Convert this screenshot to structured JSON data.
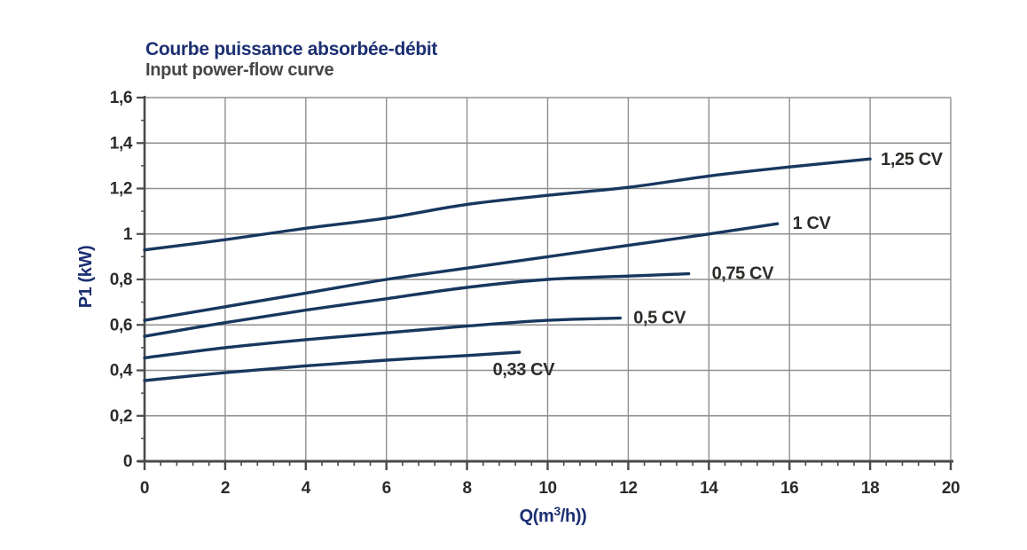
{
  "header": {
    "title": "Courbe puissance absorbée-débit",
    "subtitle": "Input power-flow curve"
  },
  "colors": {
    "background": "#ffffff",
    "title": "#1c2f72",
    "subtitle": "#474747",
    "curve": "#17375e",
    "grid": "#8f8f8f",
    "axis": "#4a4a4a",
    "tick_label": "#2b2b2b",
    "curve_label": "#2e2c29",
    "axis_title": "#1c2f72"
  },
  "chart_data": {
    "type": "line",
    "title": "Courbe puissance absorbée-débit",
    "subtitle": "Input power-flow curve",
    "xlabel": {
      "pre": "Q(m",
      "sup": "3",
      "post": "/h))"
    },
    "ylabel": "P1 (kW)",
    "xlim": [
      0,
      20
    ],
    "ylim": [
      0,
      1.6
    ],
    "grid": true,
    "x_tick_step": 2,
    "x_minor_step": 0.4,
    "y_tick_step": 0.2,
    "y_minor_step": 0.1,
    "x_tick_labels": [
      "0",
      "2",
      "4",
      "6",
      "8",
      "10",
      "12",
      "14",
      "16",
      "18",
      "20"
    ],
    "y_tick_labels": [
      "0",
      "0,2",
      "0,4",
      "0,6",
      "0,8",
      "1",
      "1,2",
      "1,4",
      "1,6"
    ],
    "legend_position": "labels at end of each curve",
    "series": [
      {
        "name": "1,25 CV",
        "x": [
          0,
          2,
          4,
          6,
          8,
          10,
          12,
          14,
          16,
          18
        ],
        "y": [
          0.93,
          0.975,
          1.025,
          1.07,
          1.13,
          1.17,
          1.205,
          1.255,
          1.295,
          1.33
        ],
        "label_dx": 12,
        "label_dy": 1
      },
      {
        "name": "1 CV",
        "x": [
          0,
          2,
          4,
          6,
          8,
          10,
          12,
          14,
          15.7
        ],
        "y": [
          0.62,
          0.68,
          0.74,
          0.8,
          0.85,
          0.9,
          0.95,
          1.0,
          1.045
        ],
        "label_dx": 17,
        "label_dy": 0
      },
      {
        "name": "0,75 CV",
        "x": [
          0,
          2,
          4,
          6,
          8,
          10,
          12,
          13.5
        ],
        "y": [
          0.55,
          0.61,
          0.665,
          0.715,
          0.765,
          0.8,
          0.815,
          0.825
        ],
        "label_dx": 26,
        "label_dy": 0
      },
      {
        "name": "0,5 CV",
        "x": [
          0,
          2,
          4,
          6,
          8,
          10,
          11.8
        ],
        "y": [
          0.455,
          0.5,
          0.535,
          0.565,
          0.595,
          0.62,
          0.63
        ],
        "label_dx": 15,
        "label_dy": 0
      },
      {
        "name": "0,33 CV",
        "x": [
          0,
          2,
          4,
          6,
          8,
          9.3
        ],
        "y": [
          0.355,
          0.39,
          0.42,
          0.445,
          0.465,
          0.48
        ],
        "label_dx": -30,
        "label_dy": 20
      }
    ]
  }
}
